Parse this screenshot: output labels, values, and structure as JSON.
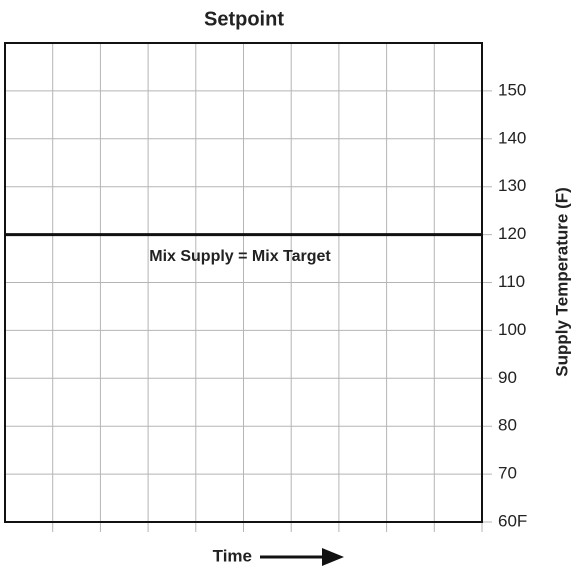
{
  "chart_data": {
    "type": "line",
    "title": "Setpoint",
    "xlabel": "Time",
    "ylabel": "Supply Temperature (F)",
    "annotation": "Mix Supply = Mix Target",
    "categories": [
      null,
      null
    ],
    "series": [
      {
        "name": "Mix Supply = Mix Target",
        "color": "#111111",
        "values": [
          120,
          120
        ]
      }
    ],
    "ylim": [
      60,
      160
    ],
    "yticks": [
      {
        "value": 60,
        "label": "60F"
      },
      70,
      80,
      90,
      100,
      110,
      120,
      130,
      140,
      150
    ],
    "grid": true
  }
}
